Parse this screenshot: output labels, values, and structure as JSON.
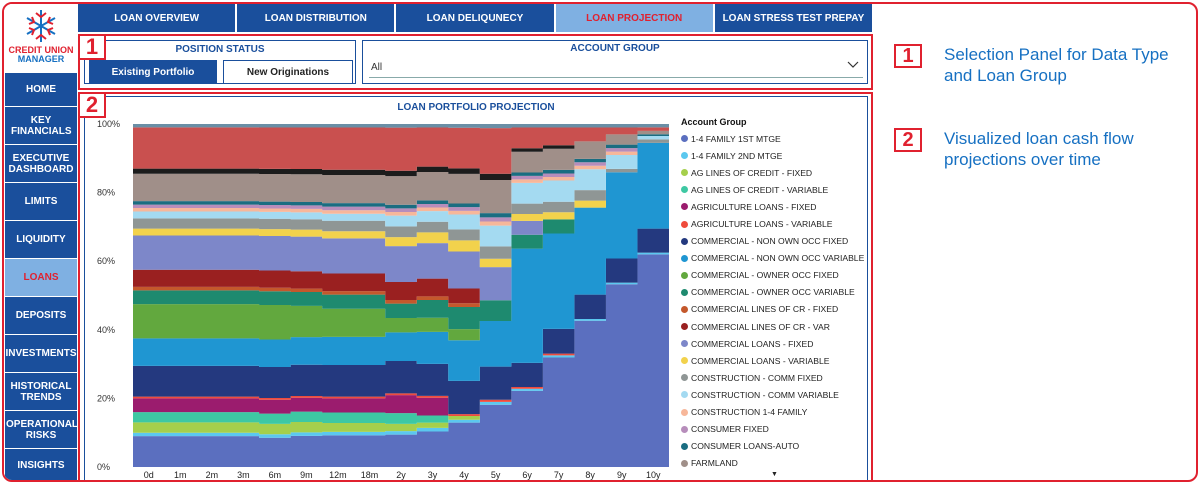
{
  "logo": {
    "line1": "CREDIT UNION",
    "line2": "MANAGER"
  },
  "sidebar": {
    "items": [
      {
        "label": "HOME"
      },
      {
        "label": "KEY FINANCIALS"
      },
      {
        "label": "EXECUTIVE DASHBOARD"
      },
      {
        "label": "LIMITS"
      },
      {
        "label": "LIQUIDITY"
      },
      {
        "label": "LOANS",
        "active": true
      },
      {
        "label": "DEPOSITS"
      },
      {
        "label": "INVESTMENTS"
      },
      {
        "label": "HISTORICAL TRENDS"
      },
      {
        "label": "OPERATIONAL RISKS"
      },
      {
        "label": "INSIGHTS"
      }
    ]
  },
  "tabs": [
    {
      "label": "LOAN OVERVIEW"
    },
    {
      "label": "LOAN DISTRIBUTION"
    },
    {
      "label": "LOAN DELIQUNECY"
    },
    {
      "label": "LOAN PROJECTION",
      "active": true
    },
    {
      "label": "LOAN STRESS TEST PREPAY"
    }
  ],
  "position_status": {
    "title": "POSITION STATUS",
    "selected": "Existing Portfolio",
    "other": "New Originations"
  },
  "account_group": {
    "title": "ACCOUNT GROUP",
    "value": "All"
  },
  "badges": {
    "one": "1",
    "two": "2"
  },
  "annotations": [
    {
      "number": "1",
      "text": "Selection Panel for Data Type and Loan Group"
    },
    {
      "number": "2",
      "text": "Visualized loan cash flow projections over time"
    }
  ],
  "chart_data": {
    "type": "area",
    "stacked": "100%",
    "title": "LOAN PORTFOLIO PROJECTION",
    "legend_title": "Account Group",
    "legend_position": "right",
    "x": [
      "0d",
      "1m",
      "2m",
      "3m",
      "6m",
      "9m",
      "12m",
      "18m",
      "2y",
      "3y",
      "4y",
      "5y",
      "6y",
      "7y",
      "8y",
      "9y",
      "10y"
    ],
    "y_ticks": [
      "0%",
      "20%",
      "40%",
      "60%",
      "80%",
      "100%"
    ],
    "ylim": [
      0,
      100
    ],
    "series": [
      {
        "name": "1-4 FAMILY 1ST MTGE",
        "color": "#5b6fbf",
        "values": [
          9,
          9,
          9,
          9,
          8.5,
          9,
          9,
          9,
          9,
          10,
          12,
          15,
          22,
          31,
          42,
          53,
          62
        ]
      },
      {
        "name": "1-4 FAMILY 2ND MTGE",
        "color": "#5bc8ef",
        "values": [
          1,
          1,
          1,
          1,
          1,
          1,
          1,
          1,
          1,
          1,
          0.8,
          0.7,
          0.6,
          0.6,
          0.5,
          0.5,
          0.5
        ]
      },
      {
        "name": "AG LINES OF CREDIT - FIXED",
        "color": "#a5cf4c",
        "values": [
          3,
          3,
          3,
          3,
          3,
          3,
          2.5,
          2.5,
          2,
          1.5,
          1,
          0,
          0,
          0,
          0,
          0,
          0
        ]
      },
      {
        "name": "AG LINES OF CREDIT - VARIABLE",
        "color": "#3ec8a3",
        "values": [
          3,
          3,
          3,
          3,
          3,
          3,
          3,
          3,
          3,
          2,
          0,
          0,
          0,
          0,
          0,
          0,
          0
        ]
      },
      {
        "name": "AGRICULTURE LOANS - FIXED",
        "color": "#9b1c6e",
        "values": [
          4,
          4,
          4,
          4,
          4,
          4,
          4,
          4,
          5,
          5,
          0,
          0,
          0,
          0,
          0,
          0,
          0
        ]
      },
      {
        "name": "AGRICULTURE LOANS - VARIABLE",
        "color": "#ef4b3c",
        "values": [
          0.5,
          0.5,
          0.5,
          0.5,
          0.5,
          0.5,
          0.5,
          0.5,
          0.5,
          0.5,
          0.5,
          0.5,
          0.5,
          0.5,
          0,
          0,
          0
        ]
      },
      {
        "name": "COMMERCIAL - NON OWN OCC FIXED",
        "color": "#24397f",
        "values": [
          9,
          9,
          9,
          9,
          9,
          9,
          9,
          9,
          9,
          9,
          9,
          8,
          7,
          7,
          7,
          7,
          7
        ]
      },
      {
        "name": "COMMERCIAL - NON OWN OCC VARIABLE",
        "color": "#1f96d2",
        "values": [
          8,
          8,
          8,
          8,
          8,
          8,
          8,
          8,
          8,
          9,
          11,
          11,
          33,
          27,
          25,
          25,
          25
        ]
      },
      {
        "name": "COMMERCIAL - OWNER OCC FIXED",
        "color": "#62a83e",
        "values": [
          10,
          10,
          10,
          10,
          10,
          9,
          8,
          8,
          4,
          4,
          3,
          0,
          0,
          0,
          0,
          0,
          0
        ]
      },
      {
        "name": "COMMERCIAL - OWNER OCC VARIABLE",
        "color": "#1e8a6f",
        "values": [
          4,
          4,
          4,
          4,
          4,
          4,
          4,
          4,
          4,
          5,
          6,
          5,
          4,
          4,
          0,
          0,
          0
        ]
      },
      {
        "name": "COMMERCIAL LINES OF CR - FIXED",
        "color": "#c4582c",
        "values": [
          1,
          1,
          1,
          1,
          1,
          1,
          1,
          1,
          1,
          1,
          1,
          0,
          0,
          0,
          0,
          0,
          0
        ]
      },
      {
        "name": "COMMERCIAL LINES OF CR - VAR",
        "color": "#9a2020",
        "values": [
          5,
          5,
          5,
          5,
          5,
          5,
          5,
          5,
          5,
          5,
          4,
          0,
          0,
          0,
          0,
          0,
          0
        ]
      },
      {
        "name": "COMMERCIAL LOANS - FIXED",
        "color": "#7d87c9",
        "values": [
          10,
          10,
          10,
          10,
          10,
          10,
          10,
          10,
          10,
          10,
          10,
          8,
          4,
          0,
          0,
          0,
          0
        ]
      },
      {
        "name": "COMMERCIAL LOANS - VARIABLE",
        "color": "#f2d24c",
        "values": [
          2,
          2,
          2,
          2,
          2,
          2,
          2,
          2,
          2.5,
          3,
          3,
          2,
          2,
          2,
          2,
          0,
          0
        ]
      },
      {
        "name": "CONSTRUCTION - COMM FIXED",
        "color": "#8f9695",
        "values": [
          3,
          3,
          3,
          3,
          3,
          3,
          3,
          3,
          3,
          3,
          3,
          3,
          3,
          3,
          3,
          1,
          1
        ]
      },
      {
        "name": "CONSTRUCTION - COMM VARIABLE",
        "color": "#a4daf1",
        "values": [
          2,
          2,
          2,
          2,
          2,
          2,
          2,
          2,
          3,
          3,
          4,
          5,
          6,
          6,
          6,
          4,
          1
        ]
      },
      {
        "name": "CONSTRUCTION 1-4 FAMILY",
        "color": "#f7b79a",
        "values": [
          1,
          1,
          1,
          1,
          1,
          1,
          1,
          1,
          1,
          1,
          1,
          1,
          1,
          1,
          1,
          1,
          0
        ]
      },
      {
        "name": "CONSUMER FIXED",
        "color": "#b78dbb",
        "values": [
          1,
          1,
          1,
          1,
          1,
          1,
          1,
          1,
          1,
          1,
          1,
          1,
          1,
          1,
          1,
          1,
          0
        ]
      },
      {
        "name": "CONSUMER LOANS-AUTO",
        "color": "#1a6d81",
        "values": [
          1,
          1,
          1,
          1,
          1,
          1,
          1,
          1,
          1,
          1,
          1,
          1,
          1,
          1,
          1,
          1,
          0.5
        ]
      },
      {
        "name": "FARMLAND",
        "color": "#a08f89",
        "values": [
          8,
          8,
          8,
          8,
          8,
          8,
          8,
          8,
          8,
          8,
          8,
          8,
          6,
          6,
          5,
          3,
          1
        ]
      },
      {
        "color": "#1c1c1c",
        "values": [
          1.5,
          1.5,
          1.5,
          1.5,
          1.5,
          1.5,
          1.5,
          1.5,
          1.5,
          1.5,
          1.5,
          1.5,
          1,
          1,
          0,
          0,
          0
        ]
      },
      {
        "color": "#c9504f",
        "values": [
          12,
          12,
          12,
          12,
          12,
          12,
          12,
          12,
          12,
          11,
          11,
          11,
          6,
          5,
          4,
          2,
          1
        ]
      },
      {
        "color": "#6a8fa6",
        "values": [
          1,
          1,
          1,
          1,
          1,
          1,
          1,
          1,
          1,
          1,
          1,
          1,
          1,
          1,
          1,
          1,
          1
        ]
      }
    ]
  },
  "legend_scroll": "▼"
}
